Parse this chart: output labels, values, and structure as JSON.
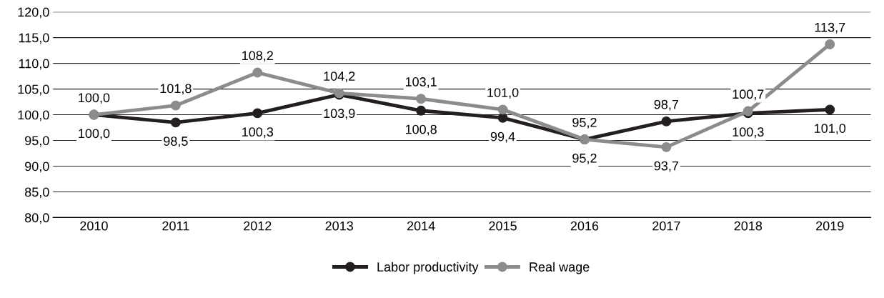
{
  "chart_data": {
    "type": "line",
    "categories": [
      "2010",
      "2011",
      "2012",
      "2013",
      "2014",
      "2015",
      "2016",
      "2017",
      "2018",
      "2019"
    ],
    "series": [
      {
        "name": "Labor productivity",
        "color": "#231f20",
        "values": [
          100.0,
          98.5,
          100.3,
          103.9,
          100.8,
          99.4,
          95.2,
          98.7,
          100.3,
          101.0
        ],
        "value_labels": [
          "100,0",
          "98,5",
          "100,3",
          "103,9",
          "100,8",
          "99,4",
          "95,2",
          "98,7",
          "100,3",
          "101,0"
        ]
      },
      {
        "name": "Real wage",
        "color": "#8c8c8c",
        "values": [
          100.0,
          101.8,
          108.2,
          104.2,
          103.1,
          101.0,
          95.2,
          93.7,
          100.7,
          113.7
        ],
        "value_labels": [
          "100,0",
          "101,8",
          "108,2",
          "104,2",
          "103,1",
          "101,0",
          "95,2",
          "93,7",
          "100,7",
          "113,7"
        ]
      }
    ],
    "ylim": [
      80,
      120
    ],
    "yticks": [
      {
        "value": 80,
        "label": "80,0"
      },
      {
        "value": 85,
        "label": "85,0"
      },
      {
        "value": 90,
        "label": "90,0"
      },
      {
        "value": 95,
        "label": "95,0"
      },
      {
        "value": 100,
        "label": "100,0"
      },
      {
        "value": 105,
        "label": "105,0"
      },
      {
        "value": 110,
        "label": "110,0"
      },
      {
        "value": 115,
        "label": "115,0"
      },
      {
        "value": 120,
        "label": "120,0"
      }
    ],
    "grid": "y",
    "legend": "bottom",
    "marker": "circle",
    "line_style": "solid"
  }
}
